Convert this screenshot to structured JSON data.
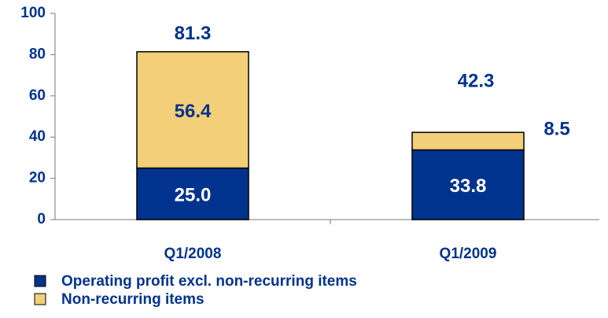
{
  "chart_data": {
    "type": "stacked_bar",
    "categories": [
      "Q1/2008",
      "Q1/2009"
    ],
    "series": [
      {
        "name": "Operating profit excl. non-recurring items",
        "color": "#00338d",
        "values": [
          25.0,
          33.8
        ],
        "value_labels": [
          "25.0",
          "33.8"
        ],
        "label_color": "#ffffff"
      },
      {
        "name": "Non-recurring items",
        "color": "#f2cf78",
        "values": [
          56.4,
          8.5
        ],
        "label_color": "#00338d"
      }
    ],
    "totals": [
      81.3,
      42.3
    ],
    "ylim": [
      0,
      100
    ],
    "yticks": [
      0,
      20,
      40,
      60,
      80,
      100
    ],
    "grid": false
  }
}
